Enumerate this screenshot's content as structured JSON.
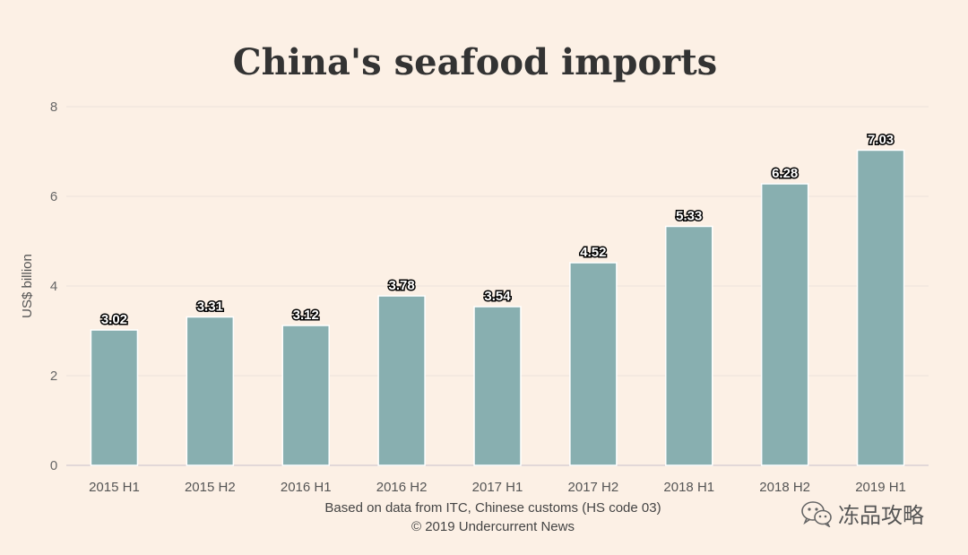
{
  "chart_data": {
    "type": "bar",
    "title": "China's seafood imports",
    "ylabel": "US$ billion",
    "xlabel": "",
    "categories": [
      "2015 H1",
      "2015 H2",
      "2016 H1",
      "2016 H2",
      "2017 H1",
      "2017 H2",
      "2018 H1",
      "2018 H2",
      "2019 H1"
    ],
    "values": [
      3.02,
      3.31,
      3.12,
      3.78,
      3.54,
      4.52,
      5.33,
      6.28,
      7.03
    ],
    "data_labels": [
      "3.02",
      "3.31",
      "3.12",
      "3.78",
      "3.54",
      "4.52",
      "5.33",
      "6.28",
      "7.03"
    ],
    "ylim": [
      0,
      8
    ],
    "yticks": [
      "0",
      "2",
      "4",
      "6",
      "8"
    ],
    "grid": true,
    "legend": "none"
  },
  "colors": {
    "background": "#fcf0e5",
    "bar": "#88afb0",
    "title": "#333333"
  },
  "footer": {
    "source": "Based on data from ITC, Chinese customs (HS code 03)",
    "copyright": "© 2019 Undercurrent News"
  },
  "watermark": {
    "text": "冻品攻略",
    "icon": "wechat-icon"
  }
}
